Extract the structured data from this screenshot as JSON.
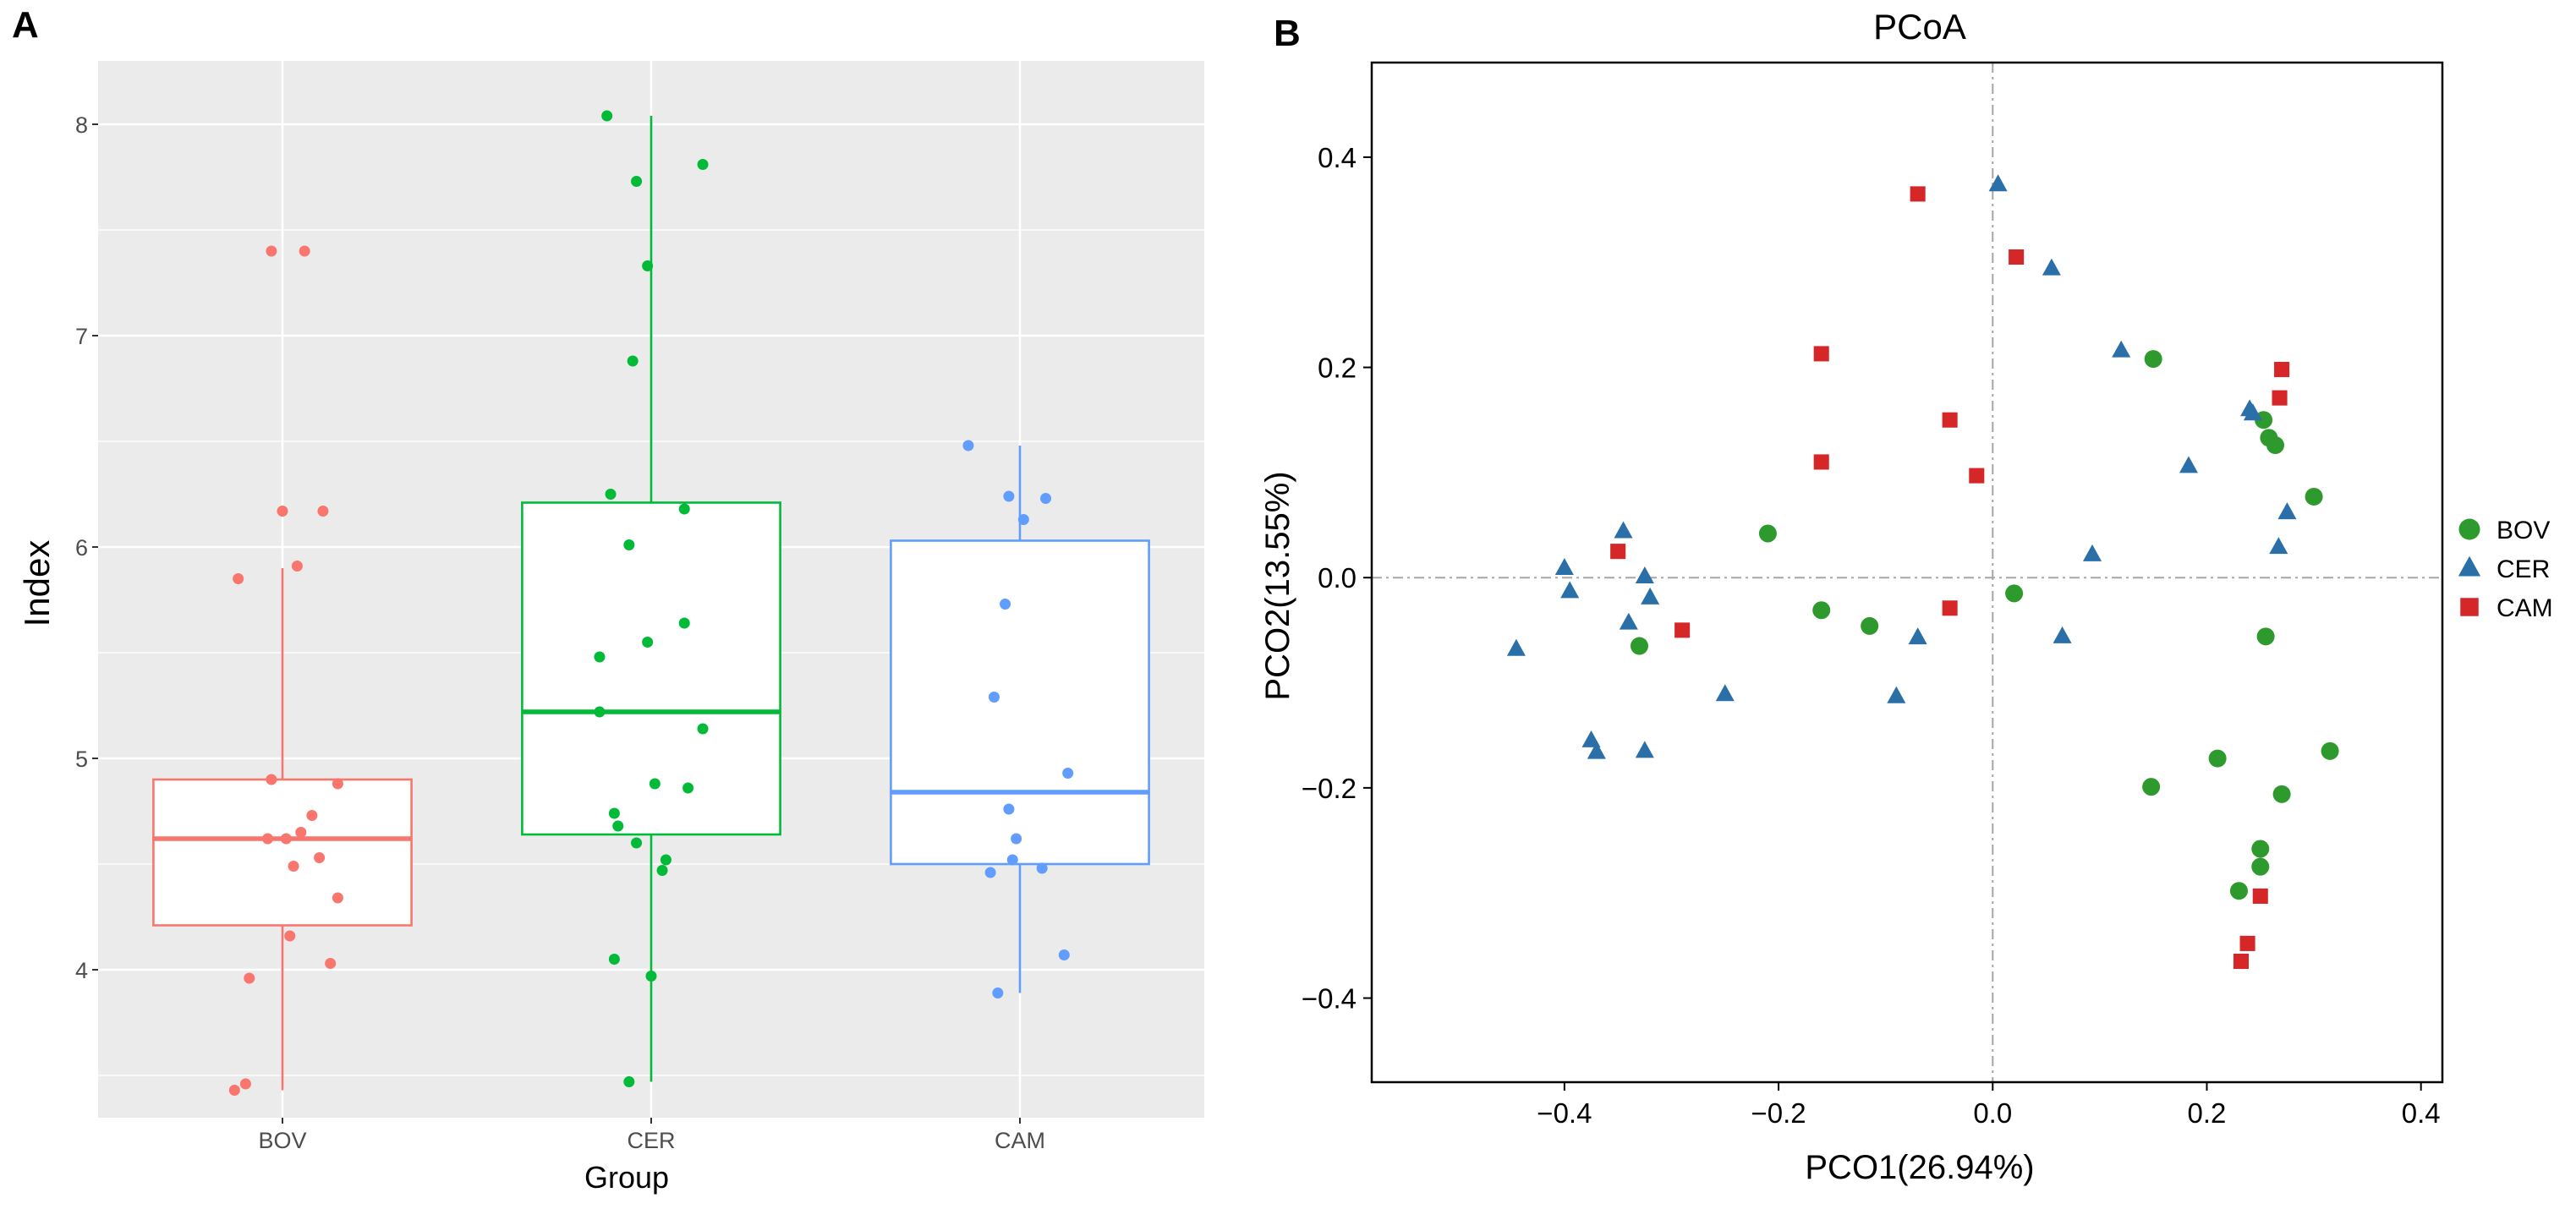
{
  "chart_data": [
    {
      "panel": "A",
      "type": "box",
      "title": "",
      "xlabel": "Group",
      "ylabel": "Index",
      "ylim": [
        3.3,
        8.3
      ],
      "yticks": [
        4,
        5,
        6,
        7,
        8
      ],
      "grid": true,
      "categories": [
        "BOV",
        "CER",
        "CAM"
      ],
      "colors": [
        "#F8766D",
        "#00BA38",
        "#619CFF"
      ],
      "boxes": [
        {
          "group": "BOV",
          "lower_whisker": 3.43,
          "q1": 4.21,
          "median": 4.62,
          "q3": 4.9,
          "upper_whisker": 5.9
        },
        {
          "group": "CER",
          "lower_whisker": 3.47,
          "q1": 4.64,
          "median": 5.22,
          "q3": 6.21,
          "upper_whisker": 8.04
        },
        {
          "group": "CAM",
          "lower_whisker": 3.89,
          "q1": 4.5,
          "median": 4.84,
          "q3": 6.03,
          "upper_whisker": 6.48
        }
      ],
      "points": [
        {
          "group": "BOV",
          "jitter": -0.03,
          "y": 7.4
        },
        {
          "group": "BOV",
          "jitter": 0.06,
          "y": 7.4
        },
        {
          "group": "BOV",
          "jitter": 0.0,
          "y": 6.17
        },
        {
          "group": "BOV",
          "jitter": 0.11,
          "y": 6.17
        },
        {
          "group": "BOV",
          "jitter": -0.12,
          "y": 5.85
        },
        {
          "group": "BOV",
          "jitter": 0.04,
          "y": 5.91
        },
        {
          "group": "BOV",
          "jitter": -0.03,
          "y": 4.9
        },
        {
          "group": "BOV",
          "jitter": 0.15,
          "y": 4.88
        },
        {
          "group": "BOV",
          "jitter": 0.08,
          "y": 4.73
        },
        {
          "group": "BOV",
          "jitter": 0.05,
          "y": 4.65
        },
        {
          "group": "BOV",
          "jitter": 0.01,
          "y": 4.62
        },
        {
          "group": "BOV",
          "jitter": -0.04,
          "y": 4.62
        },
        {
          "group": "BOV",
          "jitter": 0.1,
          "y": 4.53
        },
        {
          "group": "BOV",
          "jitter": 0.03,
          "y": 4.49
        },
        {
          "group": "BOV",
          "jitter": 0.15,
          "y": 4.34
        },
        {
          "group": "BOV",
          "jitter": 0.02,
          "y": 4.16
        },
        {
          "group": "BOV",
          "jitter": 0.13,
          "y": 4.03
        },
        {
          "group": "BOV",
          "jitter": -0.09,
          "y": 3.96
        },
        {
          "group": "BOV",
          "jitter": -0.1,
          "y": 3.46
        },
        {
          "group": "BOV",
          "jitter": -0.13,
          "y": 3.43
        },
        {
          "group": "CER",
          "jitter": -0.12,
          "y": 8.04
        },
        {
          "group": "CER",
          "jitter": 0.14,
          "y": 7.81
        },
        {
          "group": "CER",
          "jitter": -0.04,
          "y": 7.73
        },
        {
          "group": "CER",
          "jitter": -0.01,
          "y": 7.33
        },
        {
          "group": "CER",
          "jitter": -0.05,
          "y": 6.88
        },
        {
          "group": "CER",
          "jitter": -0.11,
          "y": 6.25
        },
        {
          "group": "CER",
          "jitter": 0.09,
          "y": 6.18
        },
        {
          "group": "CER",
          "jitter": -0.06,
          "y": 6.01
        },
        {
          "group": "CER",
          "jitter": 0.09,
          "y": 5.64
        },
        {
          "group": "CER",
          "jitter": -0.01,
          "y": 5.55
        },
        {
          "group": "CER",
          "jitter": -0.14,
          "y": 5.48
        },
        {
          "group": "CER",
          "jitter": -0.14,
          "y": 5.22
        },
        {
          "group": "CER",
          "jitter": 0.14,
          "y": 5.14
        },
        {
          "group": "CER",
          "jitter": 0.01,
          "y": 4.88
        },
        {
          "group": "CER",
          "jitter": 0.1,
          "y": 4.86
        },
        {
          "group": "CER",
          "jitter": -0.1,
          "y": 4.74
        },
        {
          "group": "CER",
          "jitter": -0.09,
          "y": 4.68
        },
        {
          "group": "CER",
          "jitter": -0.04,
          "y": 4.6
        },
        {
          "group": "CER",
          "jitter": 0.04,
          "y": 4.52
        },
        {
          "group": "CER",
          "jitter": 0.03,
          "y": 4.47
        },
        {
          "group": "CER",
          "jitter": -0.1,
          "y": 4.05
        },
        {
          "group": "CER",
          "jitter": 0.0,
          "y": 3.97
        },
        {
          "group": "CER",
          "jitter": -0.06,
          "y": 3.47
        },
        {
          "group": "CAM",
          "jitter": -0.14,
          "y": 6.48
        },
        {
          "group": "CAM",
          "jitter": -0.03,
          "y": 6.24
        },
        {
          "group": "CAM",
          "jitter": 0.07,
          "y": 6.23
        },
        {
          "group": "CAM",
          "jitter": 0.01,
          "y": 6.13
        },
        {
          "group": "CAM",
          "jitter": -0.04,
          "y": 5.73
        },
        {
          "group": "CAM",
          "jitter": -0.07,
          "y": 5.29
        },
        {
          "group": "CAM",
          "jitter": 0.13,
          "y": 4.93
        },
        {
          "group": "CAM",
          "jitter": -0.03,
          "y": 4.76
        },
        {
          "group": "CAM",
          "jitter": -0.01,
          "y": 4.62
        },
        {
          "group": "CAM",
          "jitter": -0.02,
          "y": 4.52
        },
        {
          "group": "CAM",
          "jitter": 0.06,
          "y": 4.48
        },
        {
          "group": "CAM",
          "jitter": -0.08,
          "y": 4.46
        },
        {
          "group": "CAM",
          "jitter": 0.12,
          "y": 4.07
        },
        {
          "group": "CAM",
          "jitter": -0.06,
          "y": 3.89
        }
      ]
    },
    {
      "panel": "B",
      "type": "scatter",
      "title": "PCoA",
      "xlabel": "PCO1(26.94%)",
      "ylabel": "PCO2(13.55%)",
      "xlim": [
        -0.58,
        0.42
      ],
      "ylim": [
        -0.48,
        0.49
      ],
      "xticks": [
        -0.4,
        -0.2,
        0.0,
        0.2,
        0.4
      ],
      "yticks": [
        -0.4,
        -0.2,
        0.0,
        0.2,
        0.4
      ],
      "xtick_labels": [
        "−0.4",
        "−0.2",
        "0.0",
        "0.2",
        "0.4"
      ],
      "ytick_labels": [
        "−0.4",
        "−0.2",
        "0.0",
        "0.2",
        "0.4"
      ],
      "reference_lines": {
        "x": 0,
        "y": 0
      },
      "legend_position": "right",
      "series": [
        {
          "name": "BOV",
          "marker": "circle",
          "color": "#2E9A2E",
          "points": [
            [
              0.15,
              0.208
            ],
            [
              0.253,
              0.15
            ],
            [
              0.258,
              0.133
            ],
            [
              0.264,
              0.126
            ],
            [
              0.3,
              0.077
            ],
            [
              -0.21,
              0.042
            ],
            [
              -0.33,
              -0.065
            ],
            [
              -0.16,
              -0.031
            ],
            [
              -0.115,
              -0.046
            ],
            [
              0.02,
              -0.015
            ],
            [
              0.255,
              -0.056
            ],
            [
              0.315,
              -0.165
            ],
            [
              0.21,
              -0.172
            ],
            [
              0.148,
              -0.199
            ],
            [
              0.27,
              -0.206
            ],
            [
              0.25,
              -0.258
            ],
            [
              0.25,
              -0.275
            ],
            [
              0.23,
              -0.298
            ]
          ]
        },
        {
          "name": "CER",
          "marker": "triangle",
          "color": "#2A6FA8",
          "points": [
            [
              0.005,
              0.374
            ],
            [
              0.055,
              0.294
            ],
            [
              0.12,
              0.216
            ],
            [
              0.24,
              0.16
            ],
            [
              0.243,
              0.156
            ],
            [
              0.183,
              0.106
            ],
            [
              -0.345,
              0.044
            ],
            [
              0.275,
              0.062
            ],
            [
              -0.4,
              0.009
            ],
            [
              0.093,
              0.022
            ],
            [
              -0.395,
              -0.013
            ],
            [
              -0.325,
              0.001
            ],
            [
              -0.32,
              -0.019
            ],
            [
              -0.34,
              -0.043
            ],
            [
              0.267,
              0.029
            ],
            [
              -0.07,
              -0.057
            ],
            [
              0.065,
              -0.056
            ],
            [
              -0.445,
              -0.068
            ],
            [
              -0.25,
              -0.111
            ],
            [
              -0.09,
              -0.113
            ],
            [
              -0.375,
              -0.155
            ],
            [
              -0.37,
              -0.166
            ],
            [
              -0.325,
              -0.165
            ]
          ]
        },
        {
          "name": "CAM",
          "marker": "square",
          "color": "#D62728",
          "points": [
            [
              -0.07,
              0.365
            ],
            [
              0.022,
              0.305
            ],
            [
              -0.16,
              0.213
            ],
            [
              0.27,
              0.198
            ],
            [
              0.268,
              0.171
            ],
            [
              -0.04,
              0.15
            ],
            [
              -0.16,
              0.11
            ],
            [
              -0.015,
              0.097
            ],
            [
              -0.35,
              0.025
            ],
            [
              -0.04,
              -0.029
            ],
            [
              -0.29,
              -0.05
            ],
            [
              0.25,
              -0.303
            ],
            [
              0.238,
              -0.348
            ],
            [
              0.232,
              -0.365
            ]
          ]
        }
      ]
    }
  ]
}
